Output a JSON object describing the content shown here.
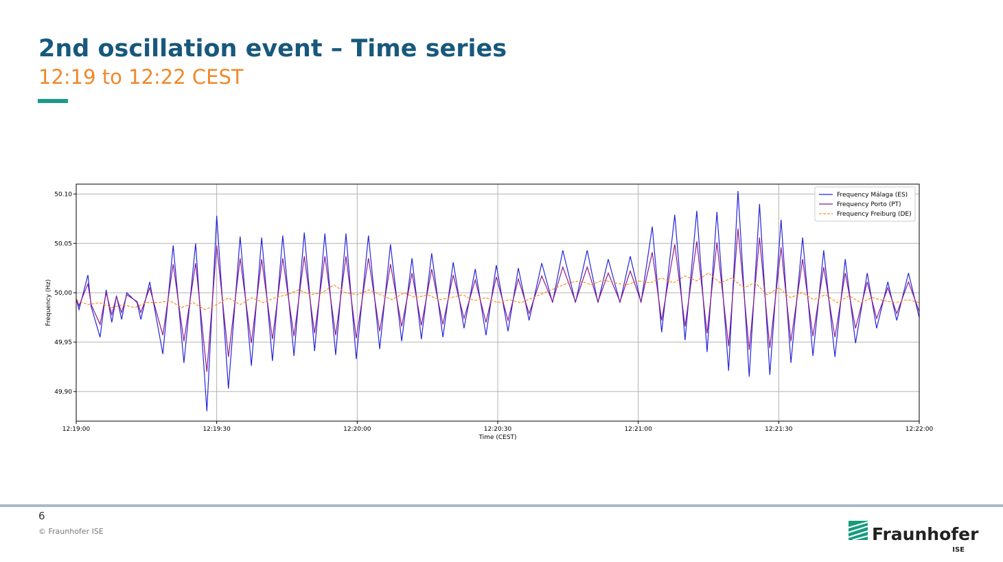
{
  "slide": {
    "title": "2nd oscillation event – Time series",
    "subtitle": "12:19 to 12:22 CEST",
    "page_number": "6",
    "copyright": "© Fraunhofer ISE",
    "logo": "Fraunhofer",
    "logo_sub": "ISE"
  },
  "chart_data": {
    "type": "line",
    "xlabel": "Time (CEST)",
    "ylabel": "Frequency (Hz)",
    "xlim": [
      0,
      180
    ],
    "xticks": [
      {
        "value": 0,
        "label": "12:19:00"
      },
      {
        "value": 30,
        "label": "12:19:30"
      },
      {
        "value": 60,
        "label": "12:20:00"
      },
      {
        "value": 90,
        "label": "12:20:30"
      },
      {
        "value": 120,
        "label": "12:21:00"
      },
      {
        "value": 150,
        "label": "12:21:30"
      },
      {
        "value": 180,
        "label": "12:22:00"
      }
    ],
    "ylim": [
      49.87,
      50.11
    ],
    "yticks": [
      {
        "value": 49.9,
        "label": "49,90"
      },
      {
        "value": 49.95,
        "label": "49,95"
      },
      {
        "value": 50.0,
        "label": "50,00"
      },
      {
        "value": 50.05,
        "label": "50.05"
      },
      {
        "value": 50.1,
        "label": "50.10"
      }
    ],
    "grid": true,
    "legend": "upper right",
    "series": [
      {
        "name": "Frequency Málaga (ES)",
        "color": "#2424d8",
        "style": "solid",
        "x": [
          0,
          0.6,
          2.5,
          3.2,
          5.1,
          6.4,
          7.6,
          8.6,
          9.7,
          10.8,
          13.0,
          13.8,
          15.7,
          18.5,
          20.7,
          23.0,
          25.5,
          27.9,
          30.0,
          32.5,
          35.0,
          37.4,
          39.6,
          41.9,
          44.1,
          46.5,
          48.7,
          50.9,
          53.1,
          55.4,
          57.6,
          59.8,
          62.4,
          64.8,
          67.1,
          69.5,
          71.7,
          73.7,
          75.9,
          78.3,
          80.5,
          82.8,
          85.2,
          87.5,
          89.7,
          92.2,
          94.4,
          96.7,
          99.4,
          101.7,
          103.9,
          106.6,
          109.1,
          111.4,
          113.6,
          116.1,
          118.3,
          120.6,
          123.0,
          125.0,
          127.8,
          130.0,
          132.5,
          134.7,
          136.8,
          139.3,
          141.3,
          143.7,
          145.9,
          148.1,
          150.5,
          152.6,
          155.1,
          157.3,
          159.6,
          162.0,
          164.2,
          166.4,
          168.9,
          170.9,
          173.3,
          175.2,
          177.7,
          180.0
        ],
        "values": [
          49.994,
          49.983,
          50.018,
          49.986,
          49.955,
          50.003,
          49.97,
          49.997,
          49.973,
          50.0,
          49.99,
          49.973,
          50.011,
          49.938,
          50.048,
          49.929,
          50.05,
          49.88,
          50.078,
          49.903,
          50.057,
          49.926,
          50.056,
          49.931,
          50.058,
          49.936,
          50.061,
          49.941,
          50.06,
          49.937,
          50.06,
          49.933,
          50.058,
          49.943,
          50.049,
          49.951,
          50.035,
          49.953,
          50.04,
          49.955,
          50.031,
          49.964,
          50.024,
          49.957,
          50.028,
          49.961,
          50.025,
          49.972,
          50.03,
          49.99,
          50.043,
          49.99,
          50.043,
          49.99,
          50.034,
          49.99,
          50.037,
          49.99,
          50.067,
          49.96,
          50.079,
          49.952,
          50.083,
          49.94,
          50.082,
          49.921,
          50.103,
          49.915,
          50.09,
          49.917,
          50.074,
          49.929,
          50.056,
          49.936,
          50.043,
          49.935,
          50.034,
          49.949,
          50.02,
          49.964,
          50.011,
          49.972,
          50.02,
          49.975
        ]
      },
      {
        "name": "Frequency Porto (PT)",
        "color": "#8b1a8b",
        "style": "solid",
        "x": [
          0,
          0.6,
          2.5,
          3.2,
          5.1,
          6.4,
          7.6,
          8.6,
          9.7,
          10.8,
          13.0,
          13.8,
          15.7,
          18.5,
          20.7,
          23.0,
          25.5,
          27.9,
          30.0,
          32.5,
          35.0,
          37.4,
          39.6,
          41.9,
          44.1,
          46.5,
          48.7,
          50.9,
          53.1,
          55.4,
          57.6,
          59.8,
          62.4,
          64.8,
          67.1,
          69.5,
          71.7,
          73.7,
          75.9,
          78.3,
          80.5,
          82.8,
          85.2,
          87.5,
          89.7,
          92.2,
          94.4,
          96.7,
          99.4,
          101.7,
          103.9,
          106.6,
          109.1,
          111.4,
          113.6,
          116.1,
          118.3,
          120.6,
          123.0,
          125.0,
          127.8,
          130.0,
          132.5,
          134.7,
          136.8,
          139.3,
          141.3,
          143.7,
          145.9,
          148.1,
          150.5,
          152.6,
          155.1,
          157.3,
          159.6,
          162.0,
          164.2,
          166.4,
          168.9,
          170.9,
          173.3,
          175.2,
          177.7,
          180.0
        ],
        "values": [
          49.994,
          49.987,
          50.009,
          49.988,
          49.968,
          50.0,
          49.978,
          49.996,
          49.98,
          49.998,
          49.991,
          49.98,
          50.005,
          49.957,
          50.029,
          49.951,
          50.03,
          49.92,
          50.048,
          49.935,
          50.035,
          49.949,
          50.034,
          49.953,
          50.035,
          49.956,
          50.037,
          49.959,
          50.037,
          49.957,
          50.037,
          49.954,
          50.035,
          49.961,
          50.029,
          49.966,
          50.02,
          49.967,
          50.024,
          49.968,
          50.018,
          49.974,
          50.013,
          49.97,
          50.016,
          49.972,
          50.014,
          49.979,
          50.017,
          49.991,
          50.026,
          49.991,
          50.026,
          49.991,
          50.02,
          49.991,
          50.022,
          49.991,
          50.041,
          49.972,
          50.049,
          49.966,
          50.052,
          49.959,
          50.051,
          49.946,
          50.065,
          49.942,
          50.056,
          49.944,
          50.046,
          49.951,
          50.034,
          49.956,
          50.026,
          49.955,
          50.02,
          49.964,
          50.011,
          49.974,
          50.005,
          49.979,
          50.011,
          49.981
        ]
      },
      {
        "name": "Frequency Freiburg (DE)",
        "color": "#ff8c1a",
        "style": "dashed",
        "x": [
          0,
          2.5,
          5,
          7.5,
          10,
          12.5,
          15,
          17.5,
          20,
          22.5,
          25,
          27.5,
          30,
          32.5,
          35,
          37.5,
          40,
          42.5,
          45,
          47.5,
          50,
          52.5,
          55,
          57.5,
          60,
          62.5,
          65,
          67.5,
          70,
          72.5,
          75,
          77.5,
          80,
          82.5,
          85,
          87.5,
          90,
          92.5,
          95,
          97.5,
          100,
          102.5,
          105,
          107.5,
          110,
          112.5,
          115,
          117.5,
          120,
          122.5,
          125,
          127.5,
          130,
          132.5,
          135,
          137.5,
          140,
          142.5,
          145,
          147.5,
          150,
          152.5,
          155,
          157.5,
          160,
          162.5,
          165,
          167.5,
          170,
          172.5,
          175,
          177.5,
          180
        ],
        "values": [
          49.993,
          49.988,
          49.99,
          49.985,
          49.988,
          49.985,
          49.99,
          49.99,
          49.992,
          49.985,
          49.99,
          49.983,
          49.988,
          49.995,
          49.988,
          49.995,
          49.99,
          49.995,
          49.998,
          50.003,
          49.998,
          50.0,
          50.008,
          50.0,
          49.998,
          50.003,
          49.998,
          49.993,
          50.0,
          49.995,
          49.998,
          49.993,
          49.995,
          49.998,
          49.992,
          49.995,
          49.99,
          49.993,
          49.99,
          49.995,
          50.0,
          50.005,
          50.01,
          50.012,
          50.008,
          50.013,
          50.01,
          50.008,
          50.012,
          50.01,
          50.015,
          50.01,
          50.017,
          50.012,
          50.02,
          50.01,
          50.015,
          50.005,
          50.01,
          49.998,
          50.005,
          49.995,
          50.0,
          49.993,
          49.998,
          49.99,
          49.997,
          49.99,
          49.995,
          49.992,
          49.99,
          49.993,
          49.99
        ]
      }
    ]
  }
}
